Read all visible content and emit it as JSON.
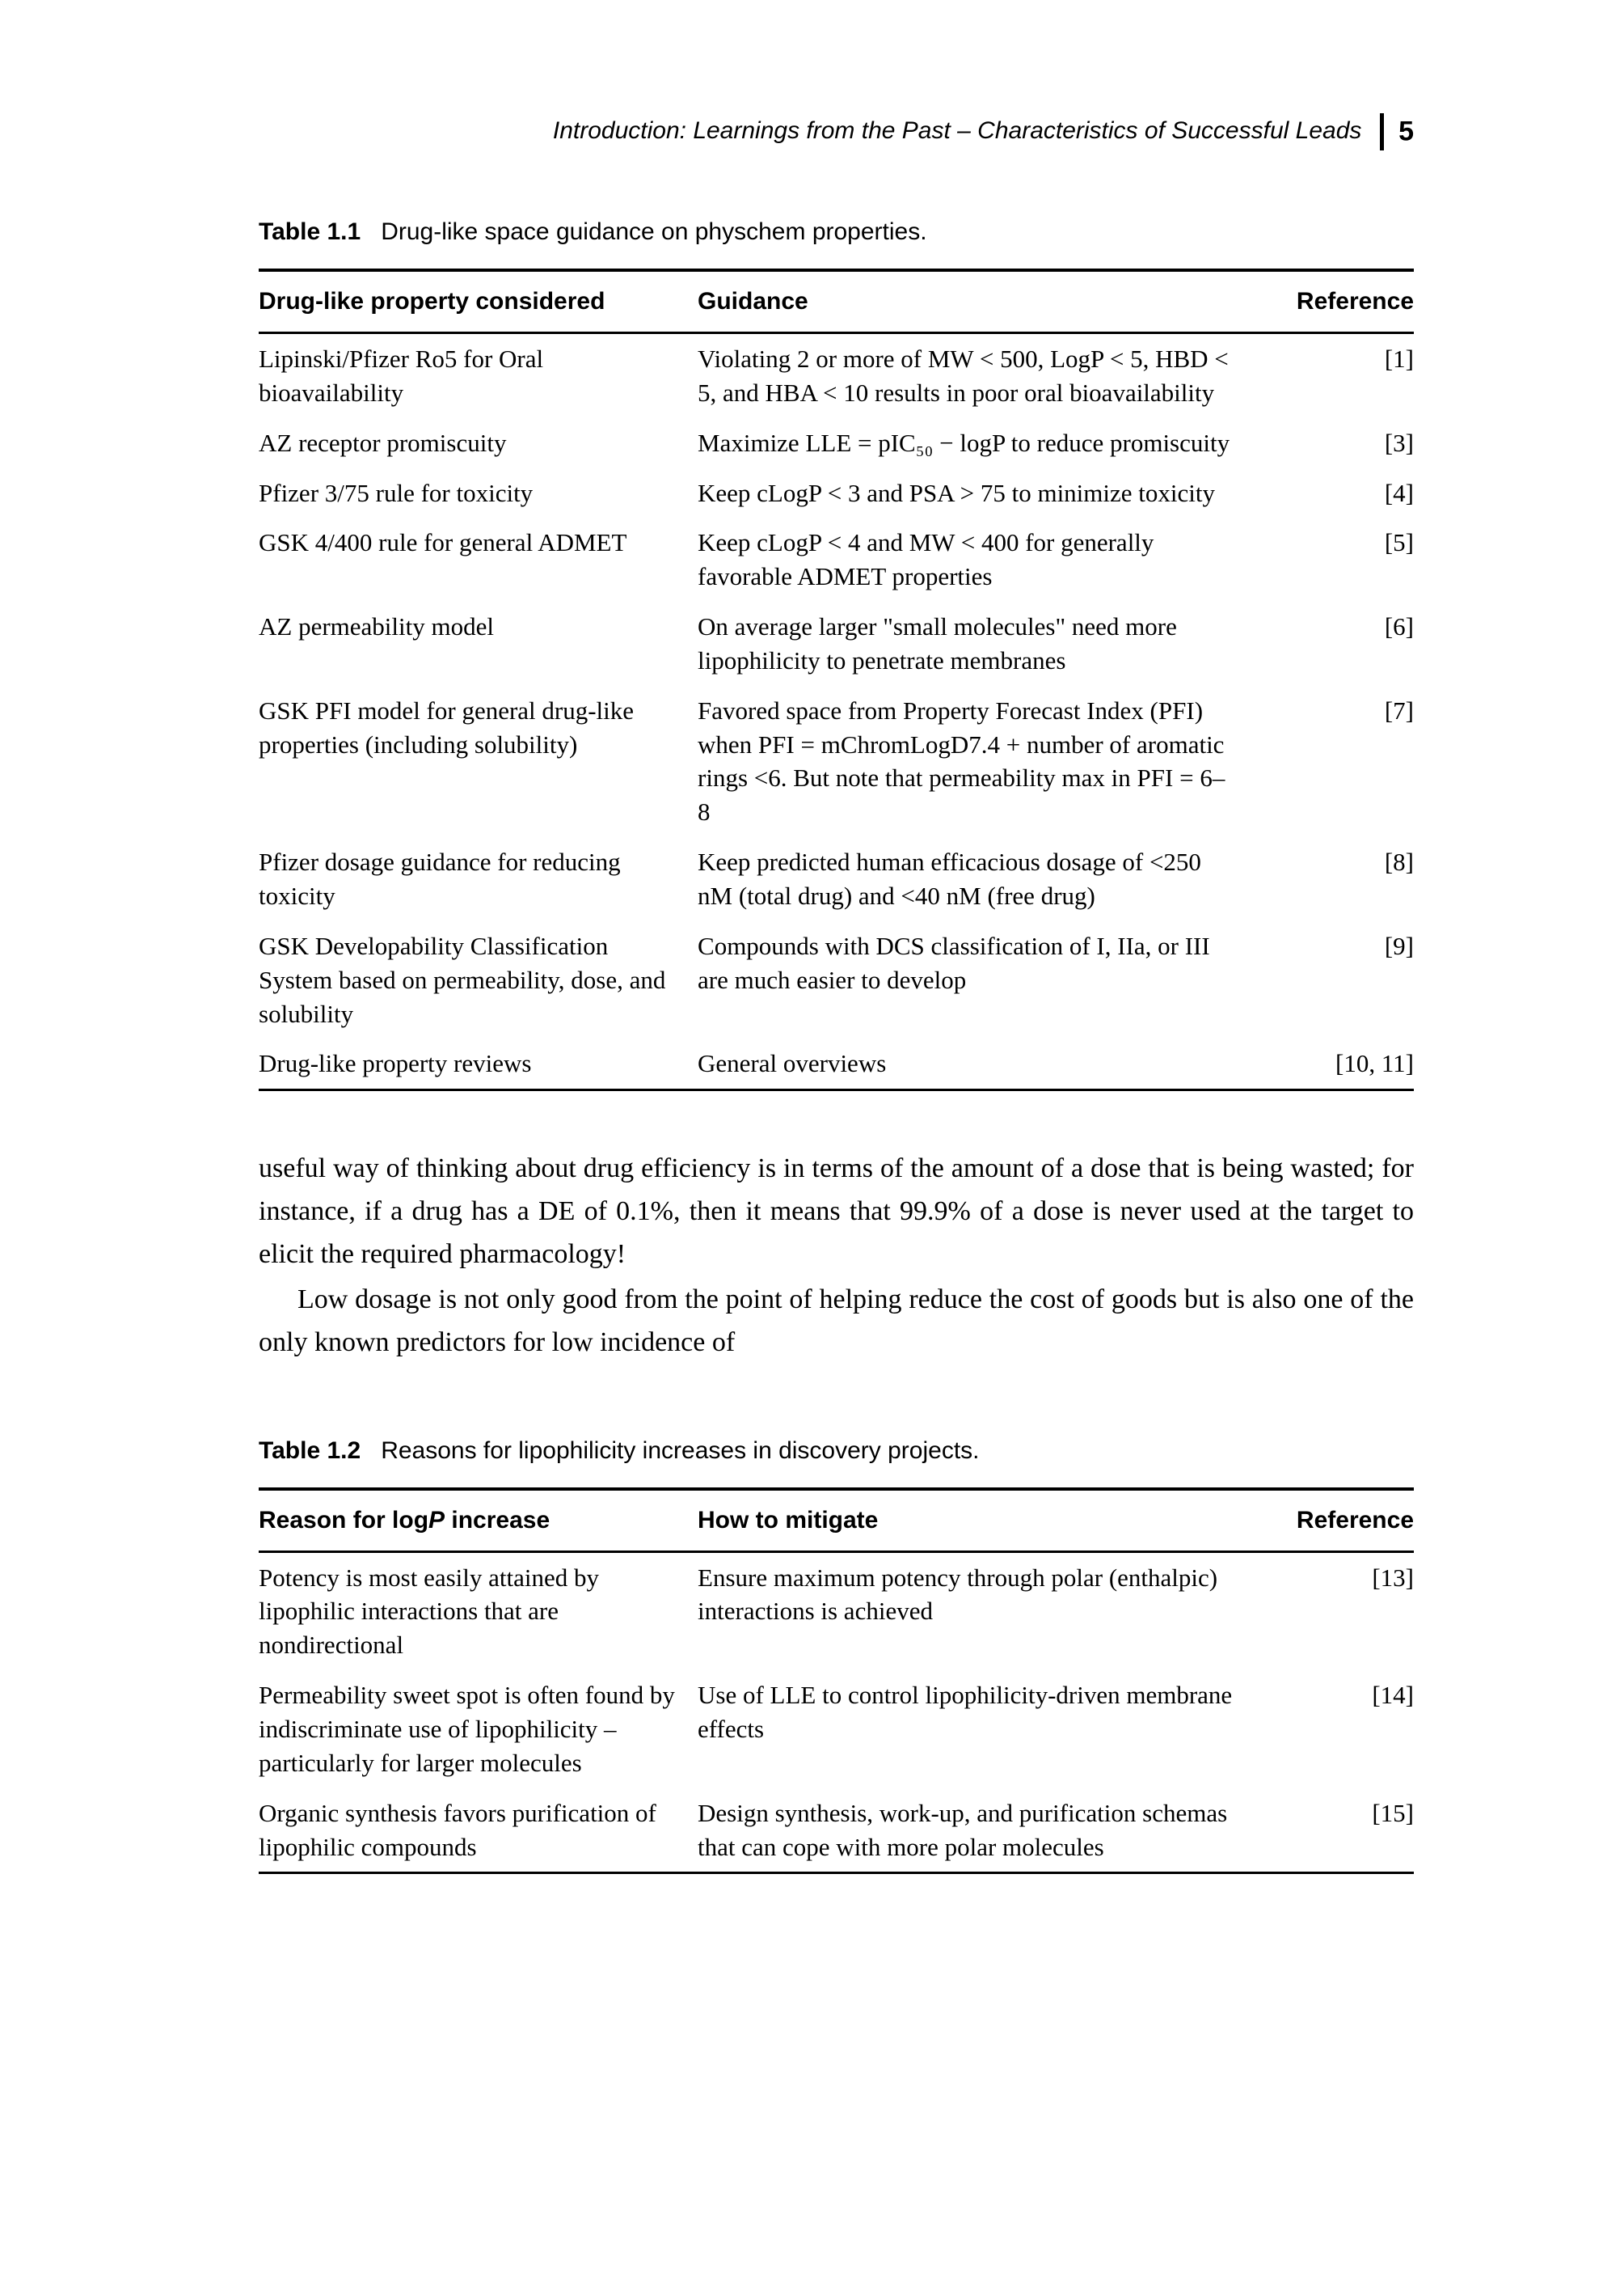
{
  "header": {
    "title": "Introduction: Learnings from the Past – Characteristics of Successful Leads",
    "page_number": "5"
  },
  "table1": {
    "caption_label": "Table 1.1",
    "caption_text": "Drug-like space guidance on physchem properties.",
    "columns": [
      "Drug-like property considered",
      "Guidance",
      "Reference"
    ],
    "rows": [
      {
        "c0": "Lipinski/Pfizer Ro5 for Oral bioavailability",
        "c1": "Violating 2 or more of MW < 500, LogP < 5, HBD < 5, and HBA < 10 results in poor oral bioavailability",
        "c2": "[1]"
      },
      {
        "c0": "AZ receptor promiscuity",
        "c1": "Maximize LLE = pIC₅₀ − logP to reduce promiscuity",
        "c2": "[3]"
      },
      {
        "c0": "Pfizer 3/75 rule for toxicity",
        "c1": "Keep cLogP < 3 and PSA > 75 to minimize toxicity",
        "c2": "[4]"
      },
      {
        "c0": "GSK 4/400 rule for general ADMET",
        "c1": "Keep cLogP < 4 and MW < 400 for generally favorable ADMET properties",
        "c2": "[5]"
      },
      {
        "c0": "AZ permeability model",
        "c1": "On average larger \"small molecules\" need more lipophilicity to penetrate membranes",
        "c2": "[6]"
      },
      {
        "c0": "GSK PFI model for general drug-like properties (including solubility)",
        "c1": "Favored space from Property Forecast Index (PFI) when PFI = mChromLogD7.4 + number of aromatic rings <6. But note that permeability max in PFI = 6–8",
        "c2": "[7]"
      },
      {
        "c0": "Pfizer dosage guidance for reducing toxicity",
        "c1": "Keep predicted human efficacious dosage of <250 nM (total drug) and <40 nM (free drug)",
        "c2": "[8]"
      },
      {
        "c0": "GSK Developability Classification System based on permeability, dose, and solubility",
        "c1": "Compounds with DCS classification of I, IIa, or III are much easier to develop",
        "c2": "[9]"
      },
      {
        "c0": "Drug-like property reviews",
        "c1": "General overviews",
        "c2": "[10, 11]"
      }
    ]
  },
  "paragraphs": {
    "p1": "useful way of thinking about drug efficiency is in terms of the amount of a dose that is being wasted; for instance, if a drug has a DE of 0.1%, then it means that 99.9% of a dose is never used at the target to elicit the required pharmacology!",
    "p2": "Low dosage is not only good from the point of helping reduce the cost of goods but is also one of the only known predictors for low incidence of"
  },
  "table2": {
    "caption_label": "Table 1.2",
    "caption_text": "Reasons for lipophilicity increases in discovery projects.",
    "columns": [
      "Reason for logP increase",
      "How to mitigate",
      "Reference"
    ],
    "rows": [
      {
        "c0": "Potency is most easily attained by lipophilic interactions that are nondirectional",
        "c1": "Ensure maximum potency through polar (enthalpic) interactions is achieved",
        "c2": "[13]"
      },
      {
        "c0": "Permeability sweet spot is often found by indiscriminate use of lipophilicity – particularly for larger molecules",
        "c1": "Use of LLE to control lipophilicity-driven membrane effects",
        "c2": "[14]"
      },
      {
        "c0": "Organic synthesis favors purification of lipophilic compounds",
        "c1": "Design synthesis, work-up, and purification schemas that can cope with more polar molecules",
        "c2": "[15]"
      }
    ]
  }
}
